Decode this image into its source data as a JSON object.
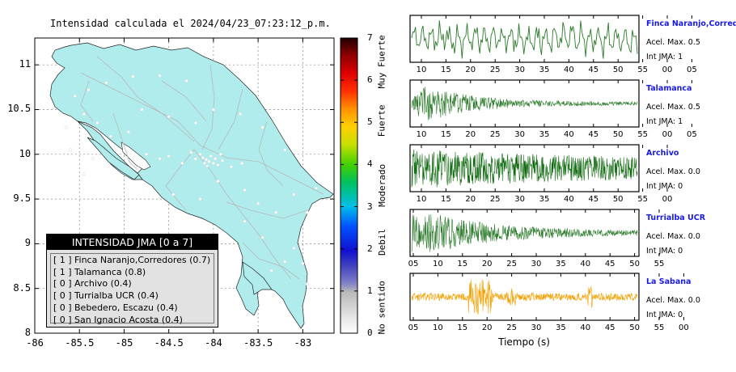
{
  "title": "Intensidad calculada el 2024/04/23_07:23:12_p.m.",
  "map": {
    "xlim": [
      -86,
      -82.65
    ],
    "ylim": [
      8,
      11.3
    ],
    "xticks": [
      "-86",
      "-85.5",
      "-85",
      "-84.5",
      "-84",
      "-83.5",
      "-83"
    ],
    "yticks": [
      "8",
      "8.5",
      "9",
      "9.5",
      "10",
      "10.5",
      "11"
    ],
    "land_color": "#b0ecec",
    "stations": [
      [
        -85.55,
        10.65
      ],
      [
        -85.4,
        10.72
      ],
      [
        -85.2,
        10.8
      ],
      [
        -84.9,
        10.87
      ],
      [
        -84.6,
        10.88
      ],
      [
        -84.3,
        10.82
      ],
      [
        -85.65,
        10.3
      ],
      [
        -85.45,
        10.45
      ],
      [
        -85.3,
        10.35
      ],
      [
        -85.15,
        10.2
      ],
      [
        -84.95,
        10.25
      ],
      [
        -84.8,
        10.5
      ],
      [
        -84.5,
        10.42
      ],
      [
        -84.2,
        10.35
      ],
      [
        -84.0,
        10.5
      ],
      [
        -83.7,
        10.45
      ],
      [
        -83.45,
        10.3
      ],
      [
        -83.2,
        10.05
      ],
      [
        -84.15,
        10.0
      ],
      [
        -84.12,
        9.96
      ],
      [
        -84.08,
        9.94
      ],
      [
        -84.05,
        9.92
      ],
      [
        -84.0,
        9.9
      ],
      [
        -83.98,
        9.95
      ],
      [
        -84.1,
        9.9
      ],
      [
        -84.03,
        9.98
      ],
      [
        -83.95,
        9.88
      ],
      [
        -84.2,
        9.95
      ],
      [
        -84.25,
        10.02
      ],
      [
        -83.9,
        9.93
      ],
      [
        -84.07,
        9.87
      ],
      [
        -83.92,
        10.0
      ],
      [
        -84.35,
        9.9
      ],
      [
        -83.8,
        9.86
      ],
      [
        -83.68,
        9.9
      ],
      [
        -84.5,
        9.98
      ],
      [
        -84.6,
        9.95
      ],
      [
        -84.75,
        10.0
      ],
      [
        -84.85,
        9.85
      ],
      [
        -85.1,
        10.05
      ],
      [
        -85.35,
        9.95
      ],
      [
        -85.6,
        10.05
      ],
      [
        -85.45,
        9.78
      ],
      [
        -83.95,
        9.7
      ],
      [
        -83.65,
        9.6
      ],
      [
        -83.5,
        9.45
      ],
      [
        -83.3,
        9.35
      ],
      [
        -83.1,
        9.55
      ],
      [
        -82.95,
        9.35
      ],
      [
        -82.85,
        9.62
      ],
      [
        -83.1,
        8.95
      ],
      [
        -83.35,
        8.7
      ],
      [
        -82.95,
        8.55
      ],
      [
        -83.2,
        8.8
      ],
      [
        -83.0,
        8.78
      ],
      [
        -82.8,
        8.5
      ],
      [
        -83.45,
        9.07
      ],
      [
        -84.15,
        9.5
      ],
      [
        -84.45,
        9.55
      ],
      [
        -83.65,
        9.25
      ]
    ]
  },
  "colorbar": {
    "range": [
      0,
      7
    ],
    "ticks": [
      "0",
      "1",
      "2",
      "3",
      "4",
      "5",
      "6",
      "7"
    ],
    "labels": [
      "No sentido",
      "Debil",
      "Moderado",
      "Fuerte",
      "Muy Fuerte"
    ]
  },
  "legend": {
    "title": "INTENSIDAD JMA [0 a 7]",
    "rows": [
      {
        "level": "[ 1 ]",
        "name": "Finca Naranjo,Corredores (0.7)"
      },
      {
        "level": "[ 1 ]",
        "name": "Talamanca (0.8)"
      },
      {
        "level": "[ 0 ]",
        "name": "Archivo (0.4)"
      },
      {
        "level": "[ 0 ]",
        "name": "Turrialba UCR (0.4)"
      },
      {
        "level": "[ 0 ]",
        "name": "Bebedero, Escazu (0.4)"
      },
      {
        "level": "[ 0 ]",
        "name": "San Ignacio Acosta (0.4)"
      }
    ]
  },
  "traces": [
    {
      "name": "Finca Naranjo,Corredores",
      "acel": "Acel. Max. 0.5",
      "int": "Int JMA: 1",
      "color": "#2a7a2a",
      "ticks": [
        "10",
        "15",
        "20",
        "25",
        "30",
        "35",
        "40",
        "45",
        "50",
        "55",
        "00",
        "05"
      ],
      "shape": "fn"
    },
    {
      "name": "Talamanca",
      "acel": "Acel. Max. 0.5",
      "int": "Int JMA: 1",
      "color": "#2a7a2a",
      "ticks": [
        "10",
        "15",
        "20",
        "25",
        "30",
        "35",
        "40",
        "45",
        "50",
        "55",
        "00",
        "05"
      ],
      "shape": "tal"
    },
    {
      "name": "Archivo",
      "acel": "Acel. Max. 0.0",
      "int": "Int JMA: 0",
      "color": "#0e6a0e",
      "ticks": [
        "10",
        "15",
        "20",
        "25",
        "30",
        "35",
        "40",
        "45",
        "50",
        "55",
        "00"
      ],
      "shape": "arc"
    },
    {
      "name": "Turrialba UCR",
      "acel": "Acel. Max. 0.0",
      "int": "Int JMA: 0",
      "color": "#2a7a2a",
      "ticks": [
        "05",
        "10",
        "15",
        "20",
        "25",
        "30",
        "35",
        "40",
        "45",
        "50",
        "55"
      ],
      "shape": "tur"
    },
    {
      "name": "La Sabana",
      "acel": "Acel. Max. 0.0",
      "int": "Int JMA: 0",
      "color": "#f0a000",
      "ticks": [
        "05",
        "10",
        "15",
        "20",
        "25",
        "30",
        "35",
        "40",
        "45",
        "50",
        "55",
        "00"
      ],
      "shape": "sab"
    }
  ],
  "xlabel": "Tiempo (s)",
  "chart_data": {
    "type": "heatmap",
    "title": "Intensidad calculada el 2024/04/23_07:23:12_p.m.",
    "xlim": [
      -86,
      -82.65
    ],
    "ylim": [
      8,
      11.3
    ],
    "colorbar_range": [
      0,
      7
    ],
    "station_intensity": [
      {
        "station": "Finca Naranjo,Corredores",
        "jma": 1,
        "value": 0.7,
        "acel_max": 0.5
      },
      {
        "station": "Talamanca",
        "jma": 1,
        "value": 0.8,
        "acel_max": 0.5
      },
      {
        "station": "Archivo",
        "jma": 0,
        "value": 0.4,
        "acel_max": 0.0
      },
      {
        "station": "Turrialba UCR",
        "jma": 0,
        "value": 0.4,
        "acel_max": 0.0
      },
      {
        "station": "Bebedero, Escazu",
        "jma": 0,
        "value": 0.4
      },
      {
        "station": "San Ignacio Acosta",
        "jma": 0,
        "value": 0.4
      },
      {
        "station": "La Sabana",
        "jma": 0,
        "acel_max": 0.0
      }
    ]
  }
}
